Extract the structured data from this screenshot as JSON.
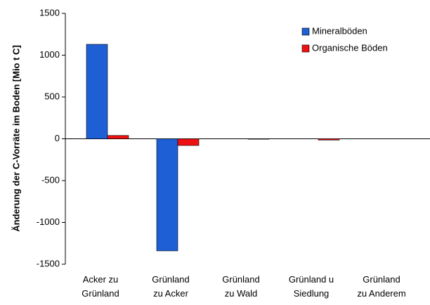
{
  "chart_data": {
    "type": "bar",
    "y_label": "Änderung der C-Vorräte im Boden [Mio t C]",
    "categories": [
      "Acker zu\nGrünland",
      "Grünland\nzu Acker",
      "Grünland\nzu Wald",
      "Grünland u\nSiedlung",
      "Grünland\nzu Anderem"
    ],
    "series": [
      {
        "name": "Mineralböden",
        "color": "#1f5fd6",
        "values": [
          1130,
          -1340,
          0,
          0,
          0
        ]
      },
      {
        "name": "Organische Böden",
        "color": "#ee1111",
        "values": [
          40,
          -80,
          -5,
          -15,
          0
        ]
      }
    ],
    "ylim": [
      -1500,
      1500
    ],
    "yticks": [
      -1500,
      -1000,
      -500,
      0,
      500,
      1000,
      1500
    ],
    "legend": "upper right"
  }
}
